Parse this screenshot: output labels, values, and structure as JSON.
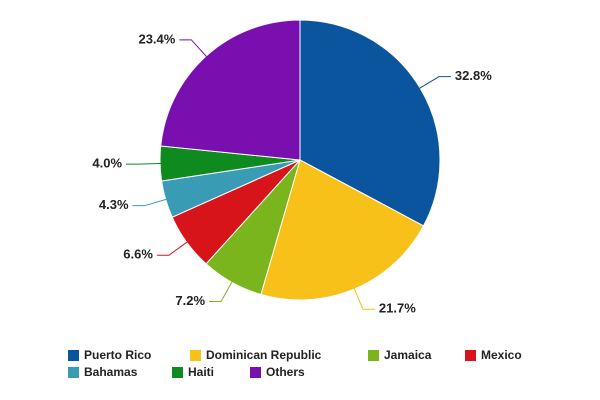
{
  "chart_data": {
    "type": "pie",
    "categories": [
      "Puerto Rico",
      "Dominican Republic",
      "Jamaica",
      "Mexico",
      "Bahamas",
      "Haiti",
      "Others"
    ],
    "values": [
      32.8,
      21.7,
      7.2,
      6.6,
      4.3,
      4.0,
      23.4
    ],
    "value_labels": [
      "32.8%",
      "21.7%",
      "7.2%",
      "6.6%",
      "4.3%",
      "4.0%",
      "23.4%"
    ],
    "colors": [
      "#0b559f",
      "#f8c11a",
      "#7ab51d",
      "#d7141a",
      "#3a9bb5",
      "#0e8a1e",
      "#7a0fb0"
    ],
    "legend": "bottom"
  }
}
